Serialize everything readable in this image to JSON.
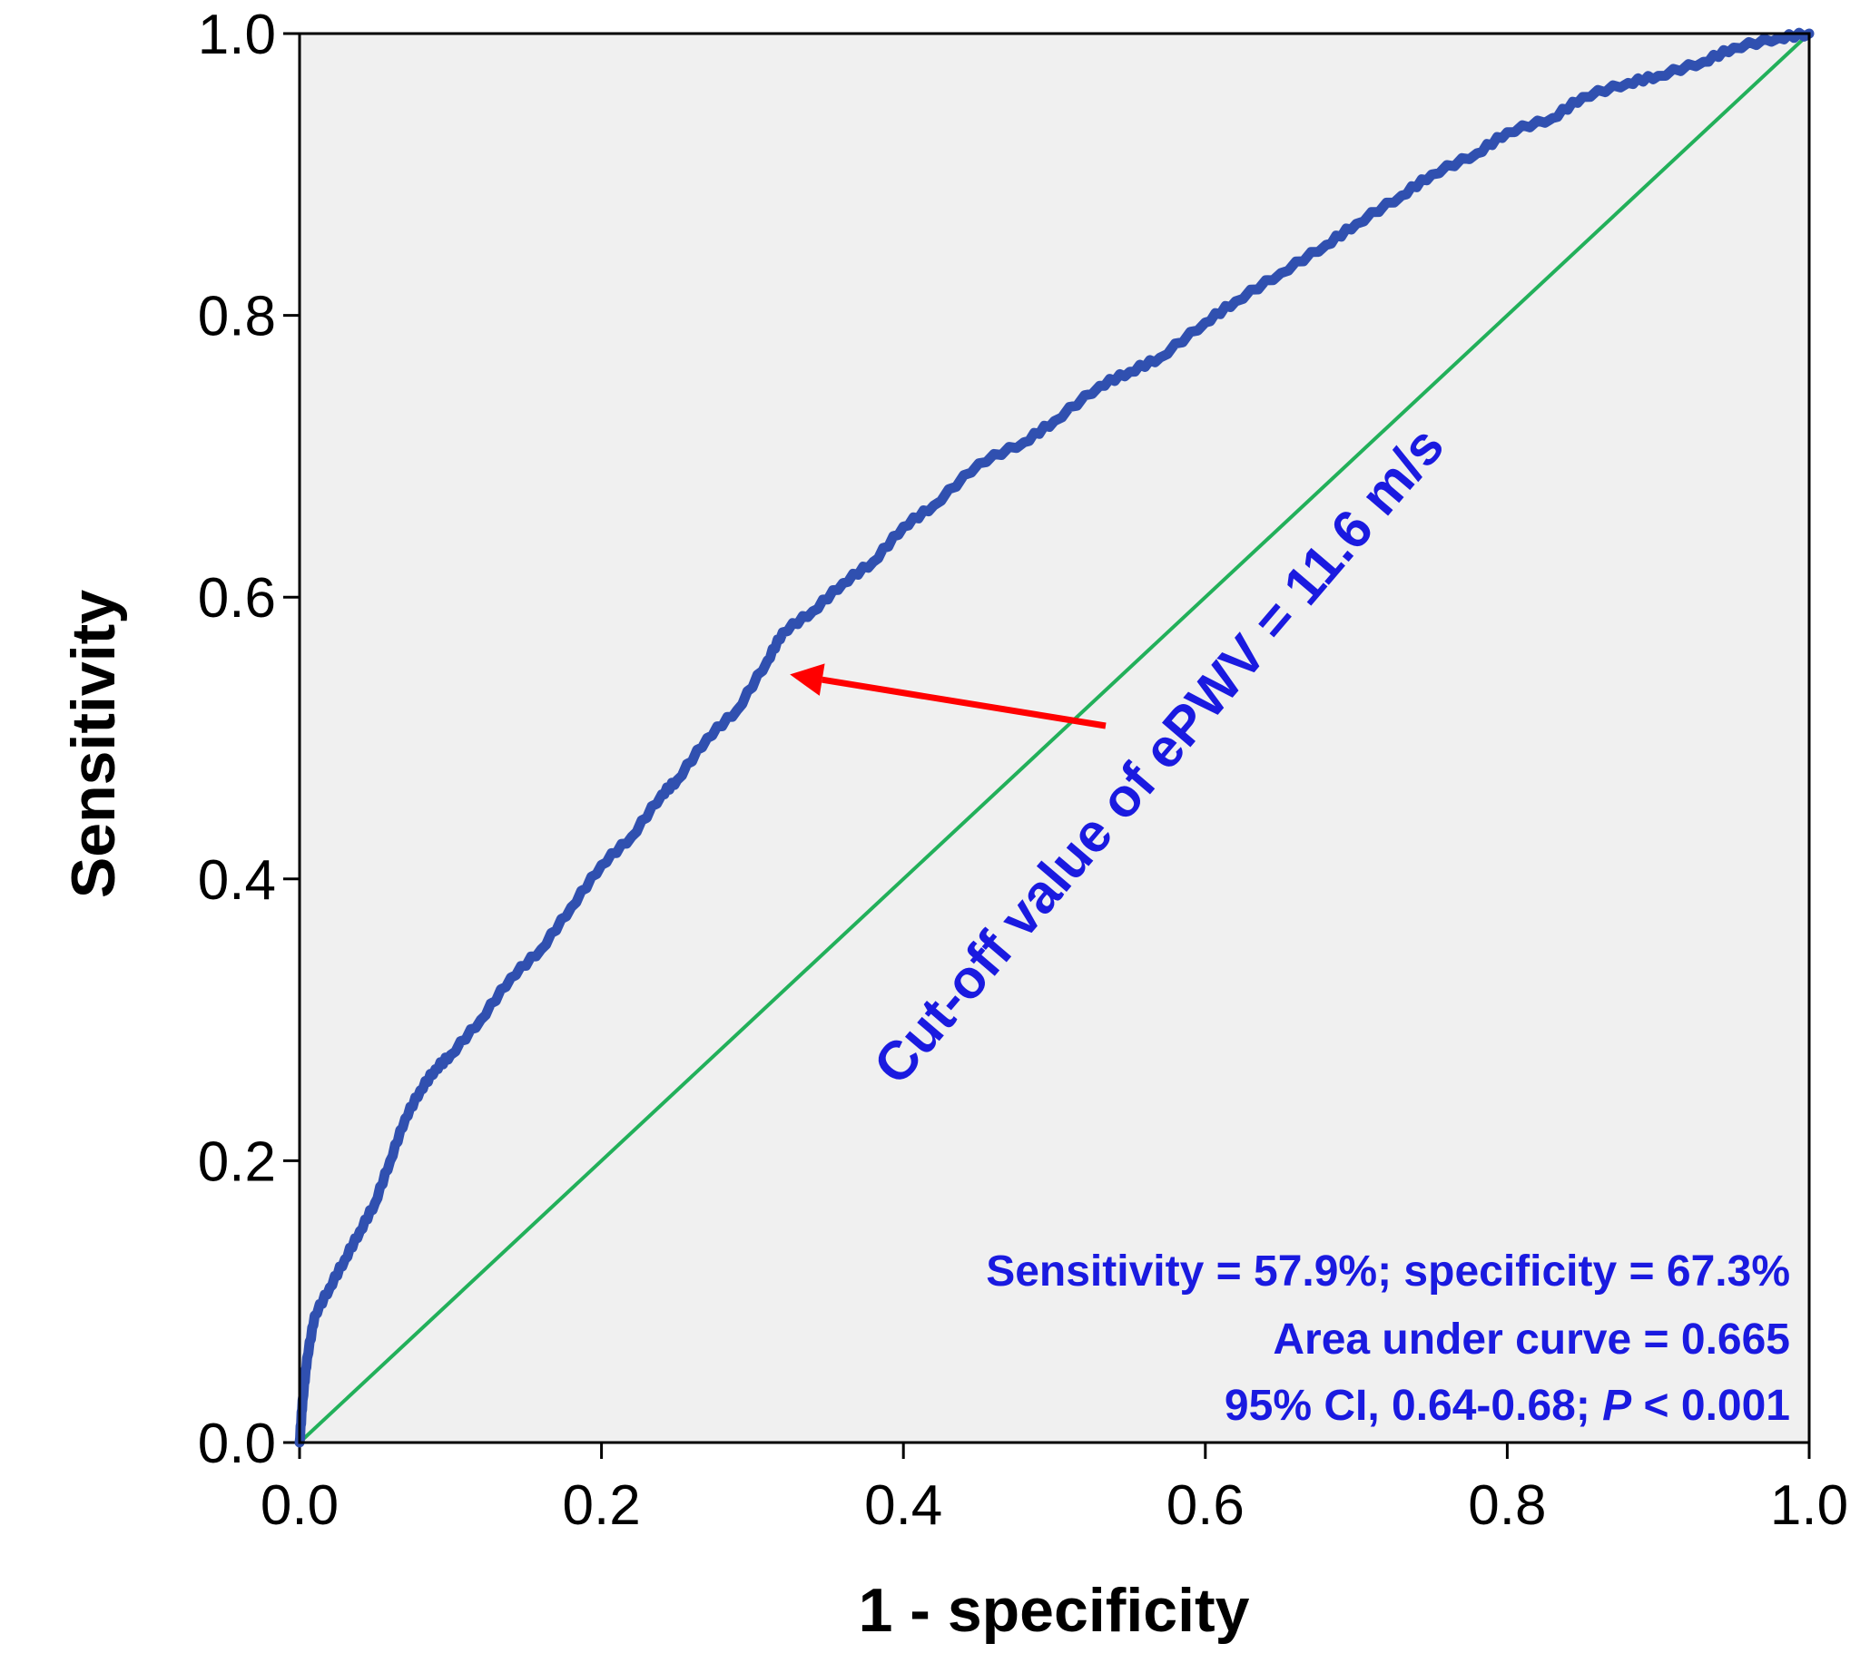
{
  "chart_data": {
    "type": "line",
    "title": "",
    "xlabel": "1 - specificity",
    "ylabel": "Sensitivity",
    "xlim": [
      0,
      1
    ],
    "ylim": [
      0,
      1
    ],
    "x_ticks": [
      "0.0",
      "0.2",
      "0.4",
      "0.6",
      "0.8",
      "1.0"
    ],
    "y_ticks": [
      "0.0",
      "0.2",
      "0.4",
      "0.6",
      "0.8",
      "1.0"
    ],
    "grid": false,
    "legend": "none",
    "series": [
      {
        "color": "#3050b0",
        "x": [
          0.0,
          0.002,
          0.005,
          0.01,
          0.02,
          0.03,
          0.04,
          0.05,
          0.06,
          0.07,
          0.08,
          0.09,
          0.1,
          0.12,
          0.14,
          0.16,
          0.18,
          0.2,
          0.22,
          0.24,
          0.25,
          0.27,
          0.29,
          0.31,
          0.32,
          0.34,
          0.36,
          0.38,
          0.4,
          0.42,
          0.45,
          0.48,
          0.5,
          0.53,
          0.55,
          0.57,
          0.6,
          0.62,
          0.65,
          0.68,
          0.7,
          0.73,
          0.75,
          0.78,
          0.8,
          0.83,
          0.85,
          0.88,
          0.9,
          0.93,
          0.95,
          0.98,
          1.0
        ],
        "y": [
          0.0,
          0.03,
          0.06,
          0.09,
          0.11,
          0.13,
          0.15,
          0.17,
          0.2,
          0.23,
          0.25,
          0.265,
          0.275,
          0.3,
          0.33,
          0.35,
          0.38,
          0.41,
          0.43,
          0.46,
          0.47,
          0.5,
          0.52,
          0.555,
          0.575,
          0.59,
          0.61,
          0.625,
          0.65,
          0.665,
          0.695,
          0.71,
          0.725,
          0.75,
          0.76,
          0.77,
          0.795,
          0.81,
          0.83,
          0.85,
          0.865,
          0.885,
          0.9,
          0.915,
          0.93,
          0.94,
          0.955,
          0.965,
          0.97,
          0.98,
          0.99,
          0.997,
          1.0
        ]
      },
      {
        "color": "#22b05a",
        "x": [
          0,
          1
        ],
        "y": [
          0,
          1
        ]
      }
    ],
    "annotations": {
      "cutoff": {
        "text": "Cut-off value of ePWV = 11.6 m/s",
        "point": [
          0.32,
          0.54
        ],
        "color": "#1a1ae0",
        "arrow_color": "#ff0000"
      },
      "stats": [
        "Sensitivity = 57.9%; specificity = 67.3%",
        "Area under curve = 0.665",
        "95% CI, 0.64-0.68; ",
        "P",
        " < 0.001"
      ],
      "stats_color": "#1a1ae0"
    },
    "plot_background": "#f0f0f0"
  }
}
